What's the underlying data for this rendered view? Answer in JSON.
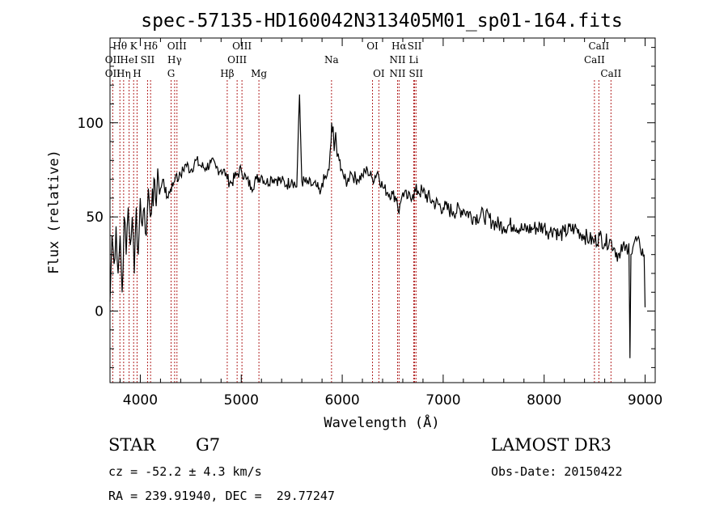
{
  "chart_data": {
    "type": "line",
    "title": "spec-57135-HD160042N313405M01_sp01-164.fits",
    "xlabel": "Wavelength (Å)",
    "ylabel": "Flux (relative)",
    "xlim": [
      3700,
      9100
    ],
    "ylim": [
      -38,
      145
    ],
    "xticks": [
      4000,
      5000,
      6000,
      7000,
      8000,
      9000
    ],
    "yticks": [
      0,
      50,
      100
    ],
    "series": [
      {
        "name": "flux",
        "x": [
          3700,
          3720,
          3740,
          3760,
          3780,
          3800,
          3820,
          3840,
          3860,
          3880,
          3900,
          3920,
          3940,
          3960,
          3980,
          4000,
          4020,
          4040,
          4060,
          4080,
          4100,
          4120,
          4150,
          4180,
          4200,
          4230,
          4260,
          4300,
          4330,
          4350,
          4360,
          4380,
          4400,
          4450,
          4500,
          4550,
          4600,
          4650,
          4700,
          4750,
          4800,
          4850,
          4861,
          4900,
          4950,
          5000,
          5050,
          5100,
          5150,
          5200,
          5250,
          5300,
          5350,
          5400,
          5450,
          5500,
          5550,
          5577,
          5600,
          5650,
          5700,
          5750,
          5780,
          5800,
          5850,
          5870,
          5890,
          5895,
          5900,
          5910,
          5920,
          5935,
          5950,
          5970,
          6000,
          6020,
          6050,
          6080,
          6100,
          6150,
          6200,
          6250,
          6300,
          6350,
          6400,
          6450,
          6500,
          6540,
          6563,
          6580,
          6600,
          6650,
          6700,
          6750,
          6800,
          6900,
          7000,
          7100,
          7200,
          7300,
          7400,
          7500,
          7600,
          7700,
          7800,
          7900,
          8000,
          8050,
          8100,
          8150,
          8200,
          8300,
          8400,
          8450,
          8500,
          8550,
          8600,
          8650,
          8700,
          8750,
          8780,
          8800,
          8840,
          8850,
          8860,
          8880,
          8900,
          8950,
          8990,
          9000
        ],
        "y": [
          5,
          40,
          25,
          45,
          20,
          40,
          10,
          50,
          30,
          55,
          35,
          50,
          20,
          55,
          30,
          60,
          45,
          55,
          40,
          65,
          50,
          65,
          60,
          70,
          65,
          70,
          60,
          65,
          68,
          72,
          73,
          70,
          72,
          78,
          75,
          80,
          77,
          76,
          79,
          76,
          75,
          73,
          70,
          68,
          72,
          75,
          70,
          66,
          70,
          72,
          68,
          71,
          70,
          69,
          67,
          70,
          66,
          115,
          69,
          68,
          67,
          66,
          62,
          68,
          72,
          75,
          90,
          100,
          95,
          98,
          85,
          95,
          82,
          80,
          75,
          70,
          68,
          74,
          72,
          70,
          72,
          75,
          70,
          74,
          66,
          63,
          62,
          60,
          52,
          58,
          63,
          60,
          62,
          64,
          63,
          58,
          55,
          53,
          54,
          50,
          51,
          47,
          45,
          46,
          43,
          44,
          45,
          42,
          44,
          40,
          42,
          44,
          40,
          38,
          37,
          40,
          36,
          38,
          33,
          28,
          35,
          32,
          36,
          -25,
          30,
          34,
          38,
          34,
          30,
          2
        ]
      }
    ],
    "emission_lines": [
      {
        "label": "OII",
        "x": 3727,
        "row": 2
      },
      {
        "label": "OII",
        "x": 3727,
        "row": 3
      },
      {
        "label": "Hθ",
        "x": 3798,
        "row": 1
      },
      {
        "label": "Hη",
        "x": 3835,
        "row": 3
      },
      {
        "label": "HeI",
        "x": 3889,
        "row": 2
      },
      {
        "label": "K",
        "x": 3934,
        "row": 1
      },
      {
        "label": "H",
        "x": 3968,
        "row": 3
      },
      {
        "label": "SII",
        "x": 4072,
        "row": 2
      },
      {
        "label": "Hδ",
        "x": 4102,
        "row": 1
      },
      {
        "label": "G",
        "x": 4305,
        "row": 3
      },
      {
        "label": "Hγ",
        "x": 4340,
        "row": 2
      },
      {
        "label": "OIII",
        "x": 4363,
        "row": 1
      },
      {
        "label": "Hβ",
        "x": 4861,
        "row": 3
      },
      {
        "label": "OIII",
        "x": 4959,
        "row": 2
      },
      {
        "label": "OIII",
        "x": 5007,
        "row": 1
      },
      {
        "label": "Mg",
        "x": 5175,
        "row": 3
      },
      {
        "label": "Na",
        "x": 5894,
        "row": 2
      },
      {
        "label": "OI",
        "x": 6300,
        "row": 1
      },
      {
        "label": "OI",
        "x": 6363,
        "row": 3
      },
      {
        "label": "NII",
        "x": 6548,
        "row": 2
      },
      {
        "label": "NII",
        "x": 6548,
        "row": 3
      },
      {
        "label": "Hα",
        "x": 6563,
        "row": 1
      },
      {
        "label": "Li",
        "x": 6708,
        "row": 2
      },
      {
        "label": "SII",
        "x": 6717,
        "row": 1
      },
      {
        "label": "SII",
        "x": 6731,
        "row": 3
      },
      {
        "label": "CaII",
        "x": 8498,
        "row": 2
      },
      {
        "label": "CaII",
        "x": 8542,
        "row": 1
      },
      {
        "label": "CaII",
        "x": 8662,
        "row": 3
      }
    ]
  },
  "info": {
    "object_type": "STAR",
    "subclass": "G7",
    "survey": "LAMOST DR3",
    "cz": "cz = -52.2 ± 4.3 km/s",
    "obs_date": "Obs-Date: 20150422",
    "coords": "RA = 239.91940, DEC =  29.77247"
  }
}
